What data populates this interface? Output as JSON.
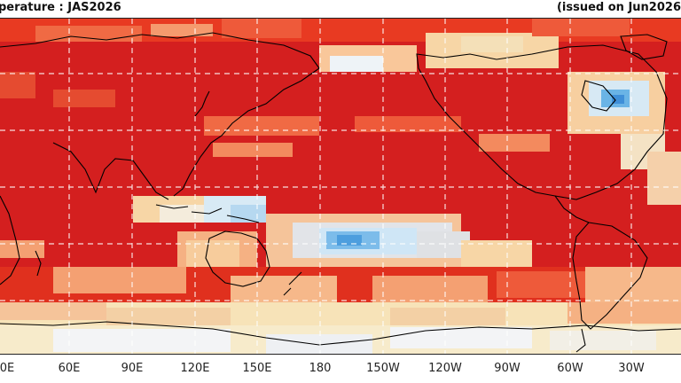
{
  "header": {
    "title": "perature : JAS2026",
    "issued": "(issued on Jun2026"
  },
  "map": {
    "projection": "equirectangular",
    "graticule": "dashed white lines every 30 degrees",
    "colors": {
      "deep_red": "#cc1a1a",
      "red": "#e0301e",
      "orange_red": "#ee5a3a",
      "salmon": "#f59a6e",
      "light_salmon": "#f9c79a",
      "cream": "#f7e8c2",
      "white_neutral": "#f4f4f4",
      "light_blue": "#bfe0f4",
      "blue": "#6ab4e6",
      "coastline": "#000000"
    }
  },
  "axis": {
    "longitude_labels": [
      "0E",
      "60E",
      "90E",
      "120E",
      "150E",
      "180",
      "150W",
      "120W",
      "90W",
      "60W",
      "30W"
    ]
  }
}
